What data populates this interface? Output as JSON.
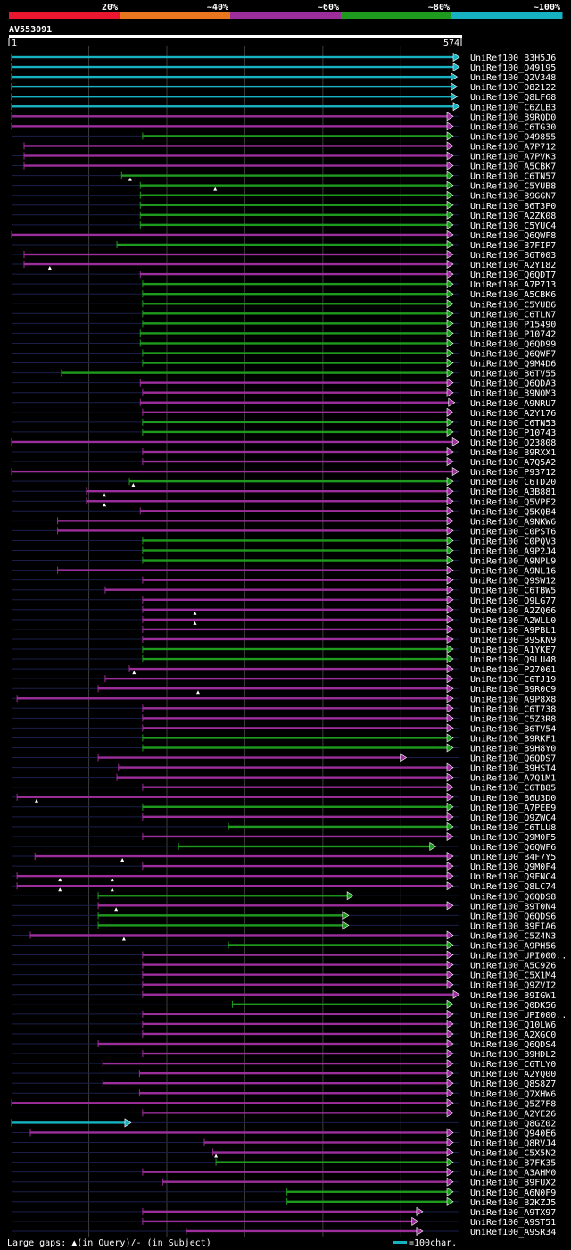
{
  "chart_data": {
    "type": "alignment-overview",
    "query_id": "AV553091",
    "query_start_label": "1",
    "query_end_label": "574",
    "query_length": 574,
    "identity_legend": [
      {
        "label": "20%",
        "color": "#e8162e"
      },
      {
        "label": "~40%",
        "color": "#e8761e"
      },
      {
        "label": "~60%",
        "color": "#9b2e9b"
      },
      {
        "label": "~80%",
        "color": "#1e9a1e"
      },
      {
        "label": "~100%",
        "color": "#17b2c2"
      }
    ],
    "hits": [
      {
        "id": "UniRef100_B3H5J6",
        "start": 1,
        "end": 574,
        "color": "cyan",
        "arrow": true
      },
      {
        "id": "UniRef100_O49195",
        "start": 1,
        "end": 574,
        "color": "cyan",
        "arrow": true
      },
      {
        "id": "UniRef100_Q2V348",
        "start": 1,
        "end": 571,
        "color": "cyan",
        "arrow": true
      },
      {
        "id": "UniRef100_O82122",
        "start": 1,
        "end": 571,
        "color": "cyan",
        "arrow": true
      },
      {
        "id": "UniRef100_Q8LF68",
        "start": 1,
        "end": 571,
        "color": "cyan",
        "arrow": true
      },
      {
        "id": "UniRef100_C6ZLB3",
        "start": 1,
        "end": 574,
        "color": "cyan",
        "arrow": true
      },
      {
        "id": "UniRef100_B9RQD0",
        "start": 1,
        "end": 566,
        "color": "magenta",
        "arrow": true
      },
      {
        "id": "UniRef100_C6TG30",
        "start": 1,
        "end": 566,
        "color": "magenta",
        "arrow": true
      },
      {
        "id": "UniRef100_O49855",
        "start": 169,
        "end": 566,
        "color": "green",
        "arrow": true
      },
      {
        "id": "UniRef100_A7P712",
        "start": 17,
        "end": 566,
        "color": "magenta",
        "arrow": true
      },
      {
        "id": "UniRef100_A7PVK3",
        "start": 17,
        "end": 566,
        "color": "magenta",
        "arrow": true
      },
      {
        "id": "UniRef100_A5CBK7",
        "start": 17,
        "end": 566,
        "color": "magenta",
        "arrow": true
      },
      {
        "id": "UniRef100_C6TN57",
        "start": 142,
        "end": 566,
        "color": "green",
        "arrow": true,
        "gaps": [
          153
        ]
      },
      {
        "id": "UniRef100_C5YUB8",
        "start": 166,
        "end": 566,
        "color": "green",
        "arrow": true,
        "gaps": [
          262
        ]
      },
      {
        "id": "UniRef100_B9GGN7",
        "start": 166,
        "end": 566,
        "color": "green",
        "arrow": true
      },
      {
        "id": "UniRef100_B6T3P0",
        "start": 166,
        "end": 566,
        "color": "green",
        "arrow": true
      },
      {
        "id": "UniRef100_A2ZK08",
        "start": 166,
        "end": 566,
        "color": "green",
        "arrow": true
      },
      {
        "id": "UniRef100_C5YUC4",
        "start": 166,
        "end": 566,
        "color": "green",
        "arrow": true
      },
      {
        "id": "UniRef100_Q6QWF8",
        "start": 1,
        "end": 566,
        "color": "magenta",
        "arrow": true
      },
      {
        "id": "UniRef100_B7FIP7",
        "start": 136,
        "end": 566,
        "color": "green",
        "arrow": true
      },
      {
        "id": "UniRef100_B6T003",
        "start": 17,
        "end": 566,
        "color": "magenta",
        "arrow": true
      },
      {
        "id": "UniRef100_A2Y182",
        "start": 17,
        "end": 566,
        "color": "magenta",
        "arrow": true,
        "gaps": [
          50
        ]
      },
      {
        "id": "UniRef100_Q6QDT7",
        "start": 166,
        "end": 566,
        "color": "magenta",
        "arrow": true
      },
      {
        "id": "UniRef100_A7P713",
        "start": 169,
        "end": 566,
        "color": "green",
        "arrow": true
      },
      {
        "id": "UniRef100_A5CBK6",
        "start": 169,
        "end": 566,
        "color": "green",
        "arrow": true
      },
      {
        "id": "UniRef100_C5YUB6",
        "start": 169,
        "end": 566,
        "color": "green",
        "arrow": true
      },
      {
        "id": "UniRef100_C6TLN7",
        "start": 169,
        "end": 566,
        "color": "green",
        "arrow": true
      },
      {
        "id": "UniRef100_P15490",
        "start": 169,
        "end": 566,
        "color": "green",
        "arrow": true
      },
      {
        "id": "UniRef100_P10742",
        "start": 166,
        "end": 566,
        "color": "green",
        "arrow": true
      },
      {
        "id": "UniRef100_Q6QD99",
        "start": 166,
        "end": 566,
        "color": "green",
        "arrow": true
      },
      {
        "id": "UniRef100_Q6QWF7",
        "start": 169,
        "end": 566,
        "color": "green",
        "arrow": true
      },
      {
        "id": "UniRef100_Q9M4D6",
        "start": 169,
        "end": 566,
        "color": "green",
        "arrow": true
      },
      {
        "id": "UniRef100_B6TV55",
        "start": 65,
        "end": 566,
        "color": "green",
        "arrow": true
      },
      {
        "id": "UniRef100_Q6QDA3",
        "start": 166,
        "end": 566,
        "color": "magenta",
        "arrow": true
      },
      {
        "id": "UniRef100_B9NOM3",
        "start": 169,
        "end": 566,
        "color": "magenta",
        "arrow": true
      },
      {
        "id": "UniRef100_A9NRU7",
        "start": 166,
        "end": 568,
        "color": "magenta",
        "arrow": true
      },
      {
        "id": "UniRef100_A2Y176",
        "start": 169,
        "end": 566,
        "color": "magenta",
        "arrow": true
      },
      {
        "id": "UniRef100_C6TN53",
        "start": 169,
        "end": 566,
        "color": "green",
        "arrow": true
      },
      {
        "id": "UniRef100_P10743",
        "start": 169,
        "end": 566,
        "color": "green",
        "arrow": true
      },
      {
        "id": "UniRef100_O23808",
        "start": 1,
        "end": 573,
        "color": "magenta",
        "arrow": true
      },
      {
        "id": "UniRef100_B9RXX1",
        "start": 169,
        "end": 566,
        "color": "magenta",
        "arrow": true
      },
      {
        "id": "UniRef100_A7Q5A2",
        "start": 169,
        "end": 566,
        "color": "magenta",
        "arrow": true
      },
      {
        "id": "UniRef100_P93712",
        "start": 1,
        "end": 573,
        "color": "magenta",
        "arrow": true
      },
      {
        "id": "UniRef100_C6TD20",
        "start": 152,
        "end": 566,
        "color": "green",
        "arrow": true,
        "gaps": [
          157
        ]
      },
      {
        "id": "UniRef100_A3B881",
        "start": 97,
        "end": 566,
        "color": "magenta",
        "arrow": true,
        "gaps": [
          120
        ]
      },
      {
        "id": "UniRef100_Q5VPF2",
        "start": 97,
        "end": 566,
        "color": "magenta",
        "arrow": true,
        "gaps": [
          120
        ]
      },
      {
        "id": "UniRef100_Q5KQB4",
        "start": 166,
        "end": 566,
        "color": "magenta",
        "arrow": true
      },
      {
        "id": "UniRef100_A9NKW6",
        "start": 60,
        "end": 566,
        "color": "magenta",
        "arrow": true
      },
      {
        "id": "UniRef100_C0PST6",
        "start": 60,
        "end": 566,
        "color": "magenta",
        "arrow": true
      },
      {
        "id": "UniRef100_C0PQV3",
        "start": 169,
        "end": 566,
        "color": "green",
        "arrow": true
      },
      {
        "id": "UniRef100_A9P2J4",
        "start": 169,
        "end": 566,
        "color": "green",
        "arrow": true
      },
      {
        "id": "UniRef100_A9NPL9",
        "start": 169,
        "end": 566,
        "color": "green",
        "arrow": true
      },
      {
        "id": "UniRef100_A9NL16",
        "start": 60,
        "end": 566,
        "color": "magenta",
        "arrow": true
      },
      {
        "id": "UniRef100_Q9SW12",
        "start": 169,
        "end": 566,
        "color": "magenta",
        "arrow": true
      },
      {
        "id": "UniRef100_C6TBW5",
        "start": 121,
        "end": 566,
        "color": "magenta",
        "arrow": true
      },
      {
        "id": "UniRef100_Q9LG77",
        "start": 169,
        "end": 566,
        "color": "magenta",
        "arrow": true
      },
      {
        "id": "UniRef100_A2ZQ66",
        "start": 169,
        "end": 566,
        "color": "magenta",
        "arrow": true,
        "gaps": [
          236
        ]
      },
      {
        "id": "UniRef100_A2WLL0",
        "start": 169,
        "end": 566,
        "color": "magenta",
        "arrow": true,
        "gaps": [
          236
        ]
      },
      {
        "id": "UniRef100_A9PBL1",
        "start": 169,
        "end": 566,
        "color": "magenta",
        "arrow": true
      },
      {
        "id": "UniRef100_B9SKN9",
        "start": 169,
        "end": 566,
        "color": "magenta",
        "arrow": true
      },
      {
        "id": "UniRef100_A1YKE7",
        "start": 169,
        "end": 566,
        "color": "green",
        "arrow": true
      },
      {
        "id": "UniRef100_Q9LU48",
        "start": 169,
        "end": 566,
        "color": "green",
        "arrow": true
      },
      {
        "id": "UniRef100_P27061",
        "start": 152,
        "end": 566,
        "color": "magenta",
        "arrow": true,
        "gaps": [
          158
        ]
      },
      {
        "id": "UniRef100_C6TJ19",
        "start": 121,
        "end": 566,
        "color": "magenta",
        "arrow": true
      },
      {
        "id": "UniRef100_B9R0C9",
        "start": 112,
        "end": 566,
        "color": "magenta",
        "arrow": true,
        "gaps": [
          240
        ]
      },
      {
        "id": "UniRef100_A9P8X8",
        "start": 8,
        "end": 566,
        "color": "magenta",
        "arrow": true
      },
      {
        "id": "UniRef100_C6T738",
        "start": 169,
        "end": 566,
        "color": "magenta",
        "arrow": true
      },
      {
        "id": "UniRef100_C5Z3R8",
        "start": 169,
        "end": 566,
        "color": "magenta",
        "arrow": true
      },
      {
        "id": "UniRef100_B6TV54",
        "start": 169,
        "end": 566,
        "color": "magenta",
        "arrow": true
      },
      {
        "id": "UniRef100_B9RKF1",
        "start": 169,
        "end": 566,
        "color": "green",
        "arrow": true
      },
      {
        "id": "UniRef100_B9H8Y0",
        "start": 169,
        "end": 566,
        "color": "green",
        "arrow": true
      },
      {
        "id": "UniRef100_Q6QDS7",
        "start": 112,
        "end": 506,
        "color": "magenta",
        "arrow": true
      },
      {
        "id": "UniRef100_B9HST4",
        "start": 138,
        "end": 566,
        "color": "magenta",
        "arrow": true
      },
      {
        "id": "UniRef100_A7Q1M1",
        "start": 136,
        "end": 566,
        "color": "magenta",
        "arrow": true
      },
      {
        "id": "UniRef100_C6TB85",
        "start": 169,
        "end": 566,
        "color": "magenta",
        "arrow": true
      },
      {
        "id": "UniRef100_B6U3D0",
        "start": 8,
        "end": 566,
        "color": "magenta",
        "arrow": true,
        "gaps": [
          33
        ]
      },
      {
        "id": "UniRef100_A7PEE9",
        "start": 169,
        "end": 566,
        "color": "green",
        "arrow": true
      },
      {
        "id": "UniRef100_Q9ZWC4",
        "start": 169,
        "end": 566,
        "color": "magenta",
        "arrow": true
      },
      {
        "id": "UniRef100_C6TLU8",
        "start": 279,
        "end": 566,
        "color": "green",
        "arrow": true
      },
      {
        "id": "UniRef100_Q9M0F5",
        "start": 169,
        "end": 566,
        "color": "magenta",
        "arrow": true
      },
      {
        "id": "UniRef100_Q6QWF6",
        "start": 215,
        "end": 544,
        "color": "green",
        "arrow": true
      },
      {
        "id": "UniRef100_B4F7Y5",
        "start": 31,
        "end": 566,
        "color": "magenta",
        "arrow": true,
        "gaps": [
          143
        ]
      },
      {
        "id": "UniRef100_Q9M0F4",
        "start": 169,
        "end": 566,
        "color": "magenta",
        "arrow": true
      },
      {
        "id": "UniRef100_Q9FNC4",
        "start": 8,
        "end": 566,
        "color": "magenta",
        "arrow": true,
        "gaps": [
          63,
          130
        ]
      },
      {
        "id": "UniRef100_Q8LC74",
        "start": 8,
        "end": 566,
        "color": "magenta",
        "arrow": true,
        "gaps": [
          63,
          130
        ]
      },
      {
        "id": "UniRef100_Q6QDS8",
        "start": 112,
        "end": 438,
        "color": "green",
        "arrow": true
      },
      {
        "id": "UniRef100_B9T0N4",
        "start": 112,
        "end": 566,
        "color": "magenta",
        "arrow": true,
        "gaps": [
          135
        ]
      },
      {
        "id": "UniRef100_Q6QDS6",
        "start": 112,
        "end": 432,
        "color": "green",
        "arrow": true
      },
      {
        "id": "UniRef100_B9FIA6",
        "start": 112,
        "end": 432,
        "color": "green",
        "arrow": true
      },
      {
        "id": "UniRef100_C5Z4N3",
        "start": 25,
        "end": 566,
        "color": "magenta",
        "arrow": true,
        "gaps": [
          145
        ]
      },
      {
        "id": "UniRef100_A9PH56",
        "start": 279,
        "end": 566,
        "color": "green",
        "arrow": true
      },
      {
        "id": "UniRef100_UPI000..",
        "start": 169,
        "end": 566,
        "color": "magenta",
        "arrow": true
      },
      {
        "id": "UniRef100_A5C9Z6",
        "start": 169,
        "end": 566,
        "color": "magenta",
        "arrow": true
      },
      {
        "id": "UniRef100_C5X1M4",
        "start": 169,
        "end": 566,
        "color": "magenta",
        "arrow": true
      },
      {
        "id": "UniRef100_Q9ZVI2",
        "start": 169,
        "end": 566,
        "color": "magenta",
        "arrow": true
      },
      {
        "id": "UniRef100_B9IGW1",
        "start": 169,
        "end": 574,
        "color": "magenta",
        "arrow": true
      },
      {
        "id": "UniRef100_Q0DK56",
        "start": 284,
        "end": 566,
        "color": "green",
        "arrow": true
      },
      {
        "id": "UniRef100_UPI000..",
        "start": 169,
        "end": 566,
        "color": "magenta",
        "arrow": true
      },
      {
        "id": "UniRef100_Q10LW6",
        "start": 169,
        "end": 566,
        "color": "magenta",
        "arrow": true
      },
      {
        "id": "UniRef100_A2XGC0",
        "start": 169,
        "end": 566,
        "color": "magenta",
        "arrow": true
      },
      {
        "id": "UniRef100_Q6QDS4",
        "start": 112,
        "end": 566,
        "color": "magenta",
        "arrow": true
      },
      {
        "id": "UniRef100_B9HDL2",
        "start": 169,
        "end": 566,
        "color": "magenta",
        "arrow": true
      },
      {
        "id": "UniRef100_C6TLY0",
        "start": 118,
        "end": 566,
        "color": "magenta",
        "arrow": true
      },
      {
        "id": "UniRef100_A2YQ00",
        "start": 165,
        "end": 566,
        "color": "magenta",
        "arrow": true
      },
      {
        "id": "UniRef100_Q8S8Z7",
        "start": 118,
        "end": 566,
        "color": "magenta",
        "arrow": true
      },
      {
        "id": "UniRef100_Q7XHW6",
        "start": 165,
        "end": 566,
        "color": "magenta",
        "arrow": true
      },
      {
        "id": "UniRef100_Q5Z7F8",
        "start": 1,
        "end": 566,
        "color": "magenta",
        "arrow": true
      },
      {
        "id": "UniRef100_A2YE26",
        "start": 169,
        "end": 566,
        "color": "magenta",
        "arrow": true
      },
      {
        "id": "UniRef100_Q8GZ02",
        "start": 1,
        "end": 153,
        "color": "cyan",
        "arrow": true
      },
      {
        "id": "UniRef100_Q940E6",
        "start": 25,
        "end": 566,
        "color": "magenta",
        "arrow": true
      },
      {
        "id": "UniRef100_Q8RVJ4",
        "start": 248,
        "end": 566,
        "color": "magenta",
        "arrow": true
      },
      {
        "id": "UniRef100_C5X5N2",
        "start": 259,
        "end": 566,
        "color": "magenta",
        "arrow": true,
        "gaps": [
          263
        ]
      },
      {
        "id": "UniRef100_B7FK35",
        "start": 263,
        "end": 566,
        "color": "green",
        "arrow": true
      },
      {
        "id": "UniRef100_A3AHM0",
        "start": 169,
        "end": 566,
        "color": "magenta",
        "arrow": true
      },
      {
        "id": "UniRef100_B9FUX2",
        "start": 195,
        "end": 566,
        "color": "magenta",
        "arrow": true
      },
      {
        "id": "UniRef100_A6N0F9",
        "start": 354,
        "end": 566,
        "color": "green",
        "arrow": true
      },
      {
        "id": "UniRef100_B2KZJ5",
        "start": 354,
        "end": 566,
        "color": "green",
        "arrow": true
      },
      {
        "id": "UniRef100_A9TX97",
        "start": 169,
        "end": 527,
        "color": "magenta",
        "arrow": true
      },
      {
        "id": "UniRef100_A9ST51",
        "start": 169,
        "end": 521,
        "color": "magenta",
        "arrow": true
      },
      {
        "id": "UniRef100_A9SR34",
        "start": 225,
        "end": 527,
        "color": "magenta",
        "arrow": true
      }
    ],
    "footer": {
      "large_gaps_text": "Large gaps: ▲(in Query)/- (in Subject)",
      "scale_text": "=100char."
    }
  },
  "colors": {
    "background": "#000000",
    "text": "#ffffff",
    "cyan": "#17b2c2",
    "magenta": "#9b2e9b",
    "green": "#1e9a1e",
    "gap_marker": "#ffffff"
  }
}
